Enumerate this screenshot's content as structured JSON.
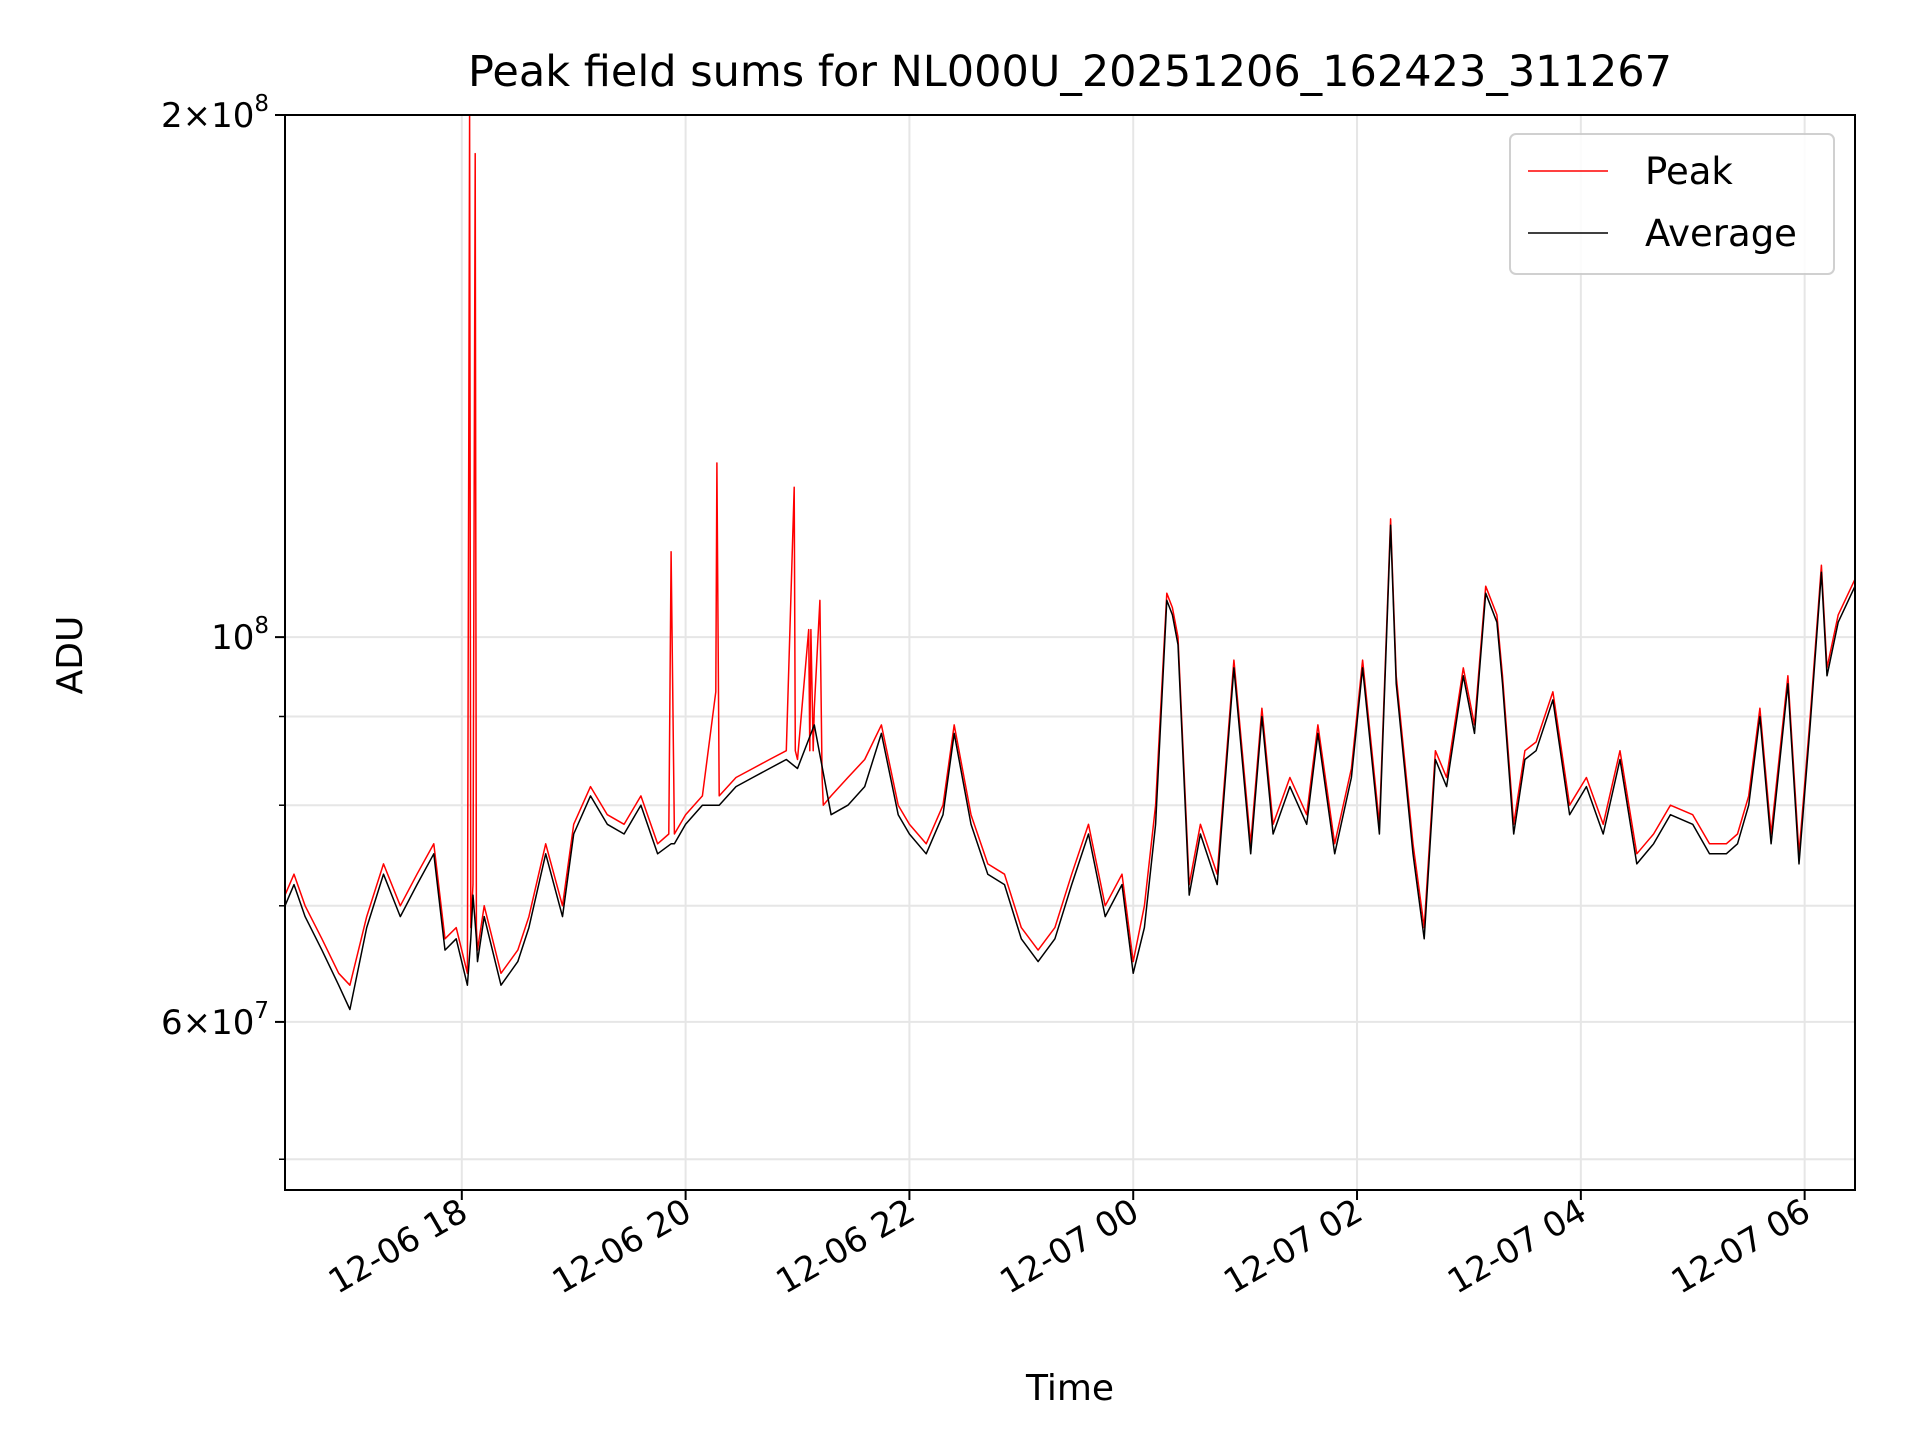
{
  "chart_data": {
    "type": "line",
    "title": "Peak field sums for NL000U_20251206_162423_311267",
    "xlabel": "Time",
    "ylabel": "ADU",
    "yscale": "log",
    "ylim": [
      48000000,
      200000000
    ],
    "xlim_hours": [
      16.42,
      30.45
    ],
    "grid": true,
    "legend_loc": "upper right",
    "x_ticks": [
      {
        "h": 18,
        "label": "12-06 18"
      },
      {
        "h": 20,
        "label": "12-06 20"
      },
      {
        "h": 22,
        "label": "12-06 22"
      },
      {
        "h": 24,
        "label": "12-07 00"
      },
      {
        "h": 26,
        "label": "12-07 02"
      },
      {
        "h": 28,
        "label": "12-07 04"
      },
      {
        "h": 30,
        "label": "12-07 06"
      }
    ],
    "y_major_ticks": [
      {
        "v": 200000000,
        "base": "2×10",
        "exp": "8"
      },
      {
        "v": 100000000,
        "base": "10",
        "exp": "8"
      },
      {
        "v": 60000000,
        "base": "6×10",
        "exp": "7"
      }
    ],
    "y_minor_gridlines": [
      50000000,
      70000000,
      80000000,
      90000000
    ],
    "series": [
      {
        "name": "Peak",
        "color": "#ff0000",
        "x_hours": [
          16.42,
          16.5,
          16.6,
          16.75,
          16.9,
          17.0,
          17.15,
          17.3,
          17.45,
          17.6,
          17.75,
          17.85,
          17.95,
          18.05,
          18.07,
          18.08,
          18.1,
          18.12,
          18.13,
          18.14,
          18.2,
          18.35,
          18.5,
          18.6,
          18.75,
          18.9,
          19.0,
          19.15,
          19.3,
          19.45,
          19.6,
          19.75,
          19.85,
          19.87,
          19.9,
          20.0,
          20.15,
          20.27,
          20.28,
          20.3,
          20.45,
          20.6,
          20.75,
          20.9,
          20.97,
          20.98,
          21.0,
          21.1,
          21.11,
          21.12,
          21.14,
          21.15,
          21.2,
          21.22,
          21.23,
          21.3,
          21.45,
          21.6,
          21.75,
          21.9,
          22.0,
          22.15,
          22.3,
          22.4,
          22.55,
          22.7,
          22.85,
          23.0,
          23.15,
          23.3,
          23.45,
          23.6,
          23.75,
          23.9,
          24.0,
          24.1,
          24.2,
          24.3,
          24.35,
          24.4,
          24.5,
          24.6,
          24.75,
          24.9,
          25.05,
          25.15,
          25.25,
          25.4,
          25.55,
          25.65,
          25.8,
          25.95,
          26.05,
          26.2,
          26.3,
          26.35,
          26.5,
          26.6,
          26.7,
          26.8,
          26.95,
          27.05,
          27.15,
          27.25,
          27.3,
          27.4,
          27.5,
          27.6,
          27.75,
          27.9,
          28.05,
          28.2,
          28.35,
          28.5,
          28.65,
          28.8,
          29.0,
          29.15,
          29.3,
          29.4,
          29.5,
          29.6,
          29.7,
          29.85,
          29.95,
          30.05,
          30.15,
          30.2,
          30.3,
          30.45
        ],
        "values": [
          71000000,
          73000000,
          70000000,
          67000000,
          64000000,
          63000000,
          69000000,
          74000000,
          70000000,
          73000000,
          76000000,
          67000000,
          68000000,
          64000000,
          200000000,
          68000000,
          72000000,
          190000000,
          68000000,
          66000000,
          70000000,
          64000000,
          66000000,
          69000000,
          76000000,
          70000000,
          78000000,
          82000000,
          79000000,
          78000000,
          81000000,
          76000000,
          77000000,
          112000000,
          77000000,
          79000000,
          81000000,
          93000000,
          126000000,
          81000000,
          83000000,
          84000000,
          85000000,
          86000000,
          122000000,
          86000000,
          85000000,
          101000000,
          86000000,
          101000000,
          86000000,
          91000000,
          105000000,
          83000000,
          80000000,
          81000000,
          83000000,
          85000000,
          89000000,
          80000000,
          78000000,
          76000000,
          80000000,
          89000000,
          79000000,
          74000000,
          73000000,
          68000000,
          66000000,
          68000000,
          73000000,
          78000000,
          70000000,
          73000000,
          65000000,
          70000000,
          80000000,
          106000000,
          104000000,
          100000000,
          72000000,
          78000000,
          73000000,
          97000000,
          76000000,
          91000000,
          78000000,
          83000000,
          79000000,
          89000000,
          76000000,
          84000000,
          97000000,
          78000000,
          117000000,
          95000000,
          76000000,
          68000000,
          86000000,
          83000000,
          96000000,
          89000000,
          107000000,
          103000000,
          95000000,
          78000000,
          86000000,
          87000000,
          93000000,
          80000000,
          83000000,
          78000000,
          86000000,
          75000000,
          77000000,
          80000000,
          79000000,
          76000000,
          76000000,
          77000000,
          81000000,
          91000000,
          77000000,
          95000000,
          75000000,
          90000000,
          110000000,
          96000000,
          103000000,
          108000000
        ]
      },
      {
        "name": "Average",
        "color": "#000000",
        "x_hours": [
          16.42,
          16.5,
          16.6,
          16.75,
          16.9,
          17.0,
          17.15,
          17.3,
          17.45,
          17.6,
          17.75,
          17.85,
          17.95,
          18.05,
          18.08,
          18.1,
          18.13,
          18.14,
          18.2,
          18.35,
          18.5,
          18.6,
          18.75,
          18.9,
          19.0,
          19.15,
          19.3,
          19.45,
          19.6,
          19.75,
          19.87,
          19.9,
          20.0,
          20.15,
          20.3,
          20.45,
          20.6,
          20.75,
          20.9,
          21.0,
          21.15,
          21.3,
          21.45,
          21.6,
          21.75,
          21.9,
          22.0,
          22.15,
          22.3,
          22.4,
          22.55,
          22.7,
          22.85,
          23.0,
          23.15,
          23.3,
          23.45,
          23.6,
          23.75,
          23.9,
          24.0,
          24.1,
          24.2,
          24.3,
          24.35,
          24.4,
          24.5,
          24.6,
          24.75,
          24.9,
          25.05,
          25.15,
          25.25,
          25.4,
          25.55,
          25.65,
          25.8,
          25.95,
          26.05,
          26.2,
          26.3,
          26.35,
          26.5,
          26.6,
          26.7,
          26.8,
          26.95,
          27.05,
          27.15,
          27.25,
          27.3,
          27.4,
          27.5,
          27.6,
          27.75,
          27.9,
          28.05,
          28.2,
          28.35,
          28.5,
          28.65,
          28.8,
          29.0,
          29.15,
          29.3,
          29.4,
          29.5,
          29.6,
          29.7,
          29.85,
          29.95,
          30.05,
          30.15,
          30.2,
          30.3,
          30.45
        ],
        "values": [
          70000000,
          72000000,
          69000000,
          66000000,
          63000000,
          61000000,
          68000000,
          73000000,
          69000000,
          72000000,
          75000000,
          66000000,
          67000000,
          63000000,
          67000000,
          71000000,
          67000000,
          65000000,
          69000000,
          63000000,
          65000000,
          68000000,
          75000000,
          69000000,
          77000000,
          81000000,
          78000000,
          77000000,
          80000000,
          75000000,
          76000000,
          76000000,
          78000000,
          80000000,
          80000000,
          82000000,
          83000000,
          84000000,
          85000000,
          84000000,
          89000000,
          79000000,
          80000000,
          82000000,
          88000000,
          79000000,
          77000000,
          75000000,
          79000000,
          88000000,
          78000000,
          73000000,
          72000000,
          67000000,
          65000000,
          67000000,
          72000000,
          77000000,
          69000000,
          72000000,
          64000000,
          68000000,
          78000000,
          105000000,
          103000000,
          99000000,
          71000000,
          77000000,
          72000000,
          96000000,
          75000000,
          90000000,
          77000000,
          82000000,
          78000000,
          88000000,
          75000000,
          83000000,
          96000000,
          77000000,
          116000000,
          94000000,
          75000000,
          67000000,
          85000000,
          82000000,
          95000000,
          88000000,
          106000000,
          102000000,
          94000000,
          77000000,
          85000000,
          86000000,
          92000000,
          79000000,
          82000000,
          77000000,
          85000000,
          74000000,
          76000000,
          79000000,
          78000000,
          75000000,
          75000000,
          76000000,
          80000000,
          90000000,
          76000000,
          94000000,
          74000000,
          89000000,
          109000000,
          95000000,
          102000000,
          107000000
        ]
      }
    ]
  }
}
